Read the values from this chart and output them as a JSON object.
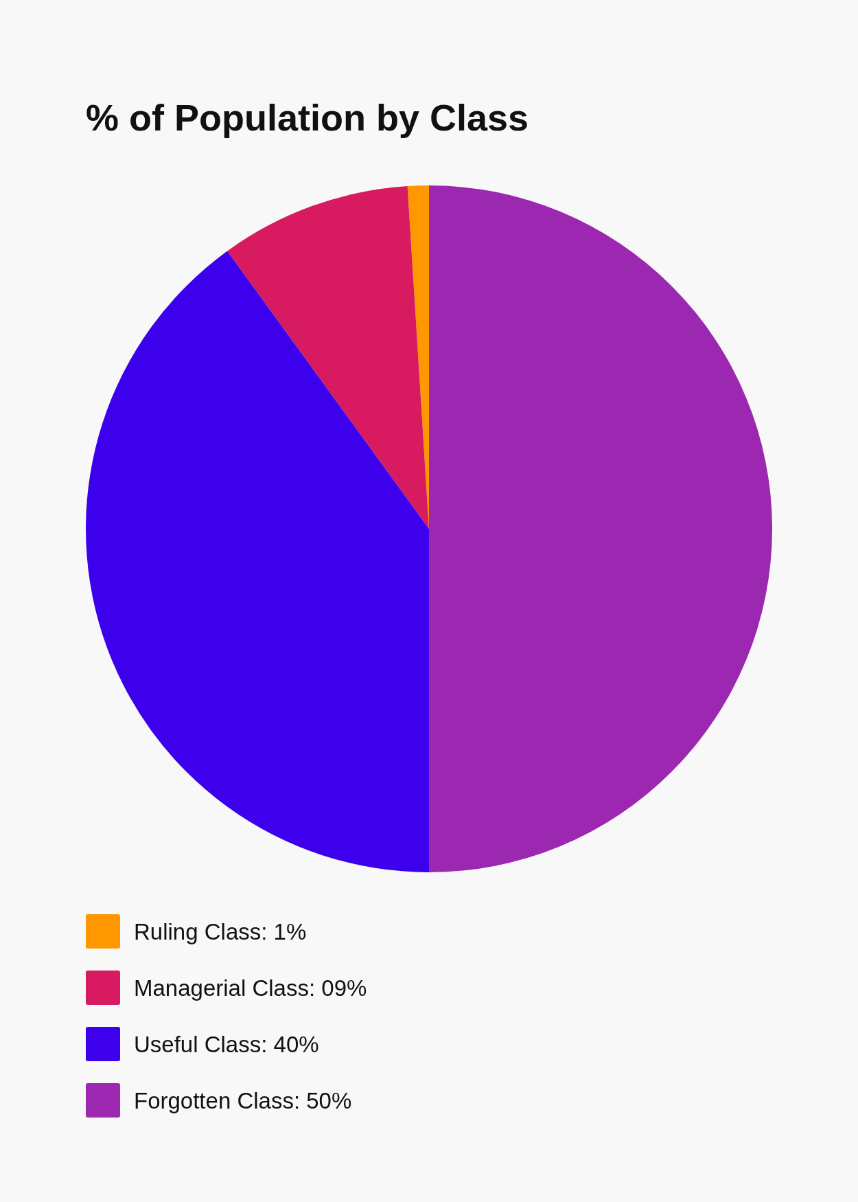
{
  "chart_data": {
    "type": "pie",
    "title": "% of Population by Class",
    "categories": [
      "Ruling Class: 1%",
      "Managerial Class: 09%",
      "Useful Class: 40%",
      "Forgotten Class: 50%"
    ],
    "values": [
      1,
      9,
      40,
      50
    ],
    "colors": [
      "#ff9800",
      "#d81b60",
      "#3d00ed",
      "#9c27b0"
    ],
    "legend": "bottom"
  }
}
